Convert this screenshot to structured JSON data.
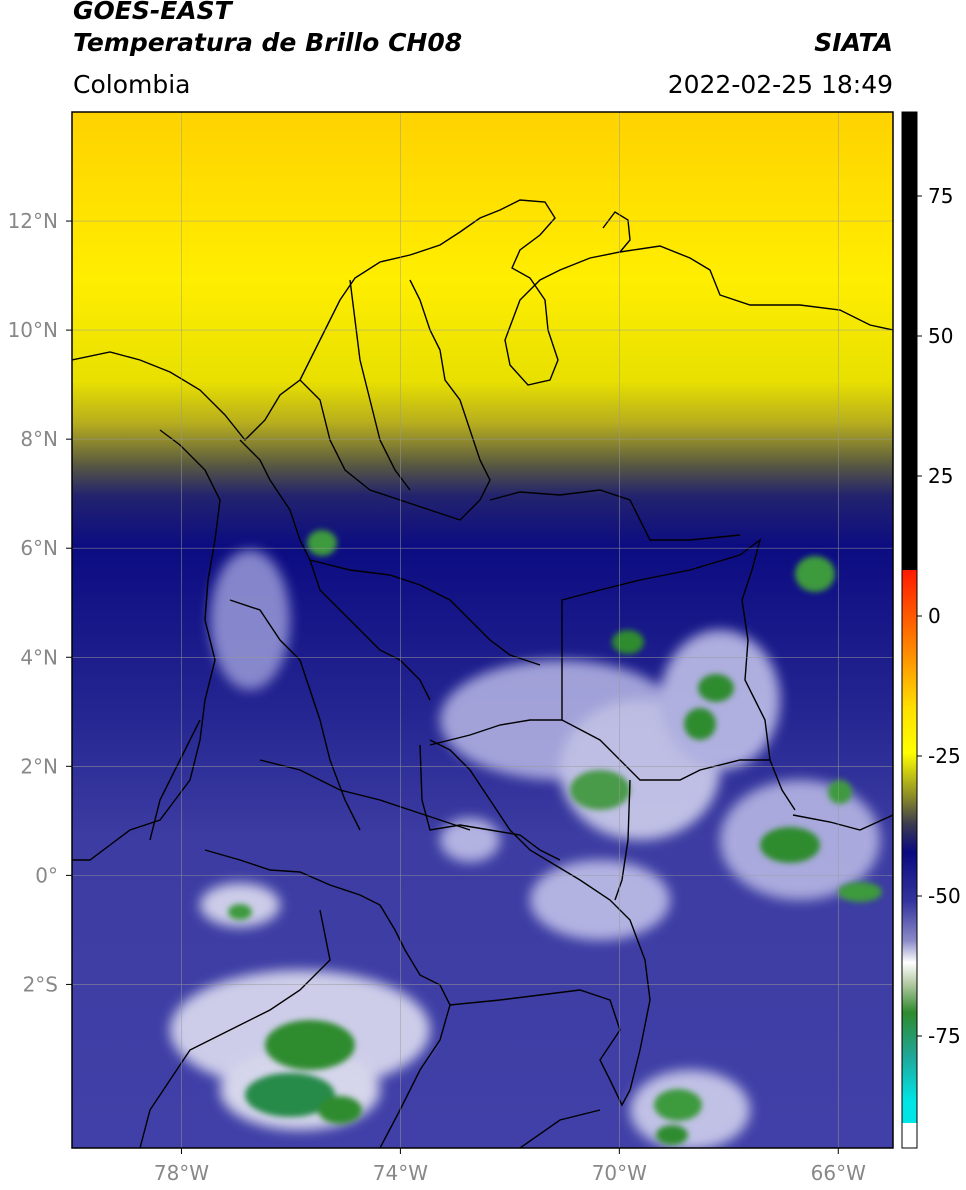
{
  "header": {
    "satellite": "GOES-EAST",
    "product": "Temperatura de Brillo CH08",
    "region": "Colombia",
    "agency": "SIATA",
    "datetime": "2022-02-25 18:49"
  },
  "map": {
    "lon_range": [
      -80,
      -65
    ],
    "lat_range": [
      -5,
      14
    ],
    "lon_ticks": [
      {
        "value": -78,
        "label": "78°W"
      },
      {
        "value": -74,
        "label": "74°W"
      },
      {
        "value": -70,
        "label": "70°W"
      },
      {
        "value": -66,
        "label": "66°W"
      }
    ],
    "lat_ticks": [
      {
        "value": 12,
        "label": "12°N"
      },
      {
        "value": 10,
        "label": "10°N"
      },
      {
        "value": 8,
        "label": "8°N"
      },
      {
        "value": 6,
        "label": "6°N"
      },
      {
        "value": 4,
        "label": "4°N"
      },
      {
        "value": 2,
        "label": "2°N"
      },
      {
        "value": 0,
        "label": "0°"
      },
      {
        "value": -2,
        "label": "2°S"
      }
    ],
    "grid": true
  },
  "colorbar": {
    "range": [
      -95,
      90
    ],
    "ticks": [
      {
        "value": 75,
        "label": "75"
      },
      {
        "value": 50,
        "label": "50"
      },
      {
        "value": 25,
        "label": "25"
      },
      {
        "value": 0,
        "label": "0"
      },
      {
        "value": -25,
        "label": "-25"
      },
      {
        "value": -50,
        "label": "-50"
      },
      {
        "value": -75,
        "label": "-75"
      }
    ],
    "colors": {
      "warm_black": "#000000",
      "red": "#ff1a00",
      "orange": "#ff8c00",
      "yellow": "#ffff00",
      "olive": "#8a8a28",
      "navy": "#0a0a80",
      "periwinkle": "#6b6bb8",
      "white": "#ffffff",
      "green": "#2e8b2e",
      "teal": "#1fa89a",
      "cyan": "#00e5e5"
    }
  }
}
